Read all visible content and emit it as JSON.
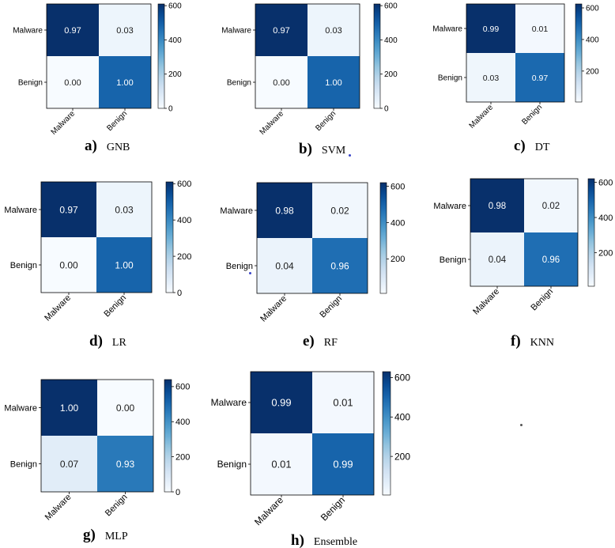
{
  "palette": [
    "#f7fbff",
    "#deebf7",
    "#c6dbef",
    "#9ecae1",
    "#6baed6",
    "#4292c6",
    "#2171b5",
    "#08519c",
    "#08306b"
  ],
  "stray_dot_colors": [
    "#3a45c8",
    "#3a45c8",
    "#555555"
  ],
  "chart_data": [
    {
      "type": "heatmap",
      "caption_letter": "a)",
      "caption_name": "GNB",
      "row_labels": [
        "Malware",
        "Benign"
      ],
      "col_labels": [
        "Malware",
        "Benign"
      ],
      "cells": [
        [
          "0.97",
          "0.03"
        ],
        [
          "0.00",
          "1.00"
        ]
      ],
      "shades": [
        [
          1.0,
          0.05
        ],
        [
          0.0,
          0.8
        ]
      ],
      "colorbar_ticks": [
        "0",
        "200",
        "400",
        "600"
      ],
      "colorbar_values": [
        0,
        200,
        400,
        600
      ],
      "colorbar_range": [
        0,
        610
      ]
    },
    {
      "type": "heatmap",
      "caption_letter": "b)",
      "caption_name": "SVM",
      "row_labels": [
        "Malware",
        "Benign"
      ],
      "col_labels": [
        "Malware",
        "Benign"
      ],
      "cells": [
        [
          "0.97",
          "0.03"
        ],
        [
          "0.00",
          "1.00"
        ]
      ],
      "shades": [
        [
          1.0,
          0.05
        ],
        [
          0.0,
          0.8
        ]
      ],
      "colorbar_ticks": [
        "0",
        "200",
        "400",
        "600"
      ],
      "colorbar_values": [
        0,
        200,
        400,
        600
      ],
      "colorbar_range": [
        0,
        610
      ]
    },
    {
      "type": "heatmap",
      "caption_letter": "c)",
      "caption_name": "DT",
      "row_labels": [
        "Malware",
        "Benign"
      ],
      "col_labels": [
        "Malware",
        "Benign"
      ],
      "cells": [
        [
          "0.99",
          "0.01"
        ],
        [
          "0.03",
          "0.97"
        ]
      ],
      "shades": [
        [
          1.0,
          0.02
        ],
        [
          0.04,
          0.78
        ]
      ],
      "colorbar_ticks": [
        "200",
        "400",
        "600"
      ],
      "colorbar_values": [
        200,
        400,
        600
      ],
      "colorbar_range": [
        4,
        625
      ]
    },
    {
      "type": "heatmap",
      "caption_letter": "d)",
      "caption_name": "LR",
      "row_labels": [
        "Malware",
        "Benign"
      ],
      "col_labels": [
        "Malware",
        "Benign"
      ],
      "cells": [
        [
          "0.97",
          "0.03"
        ],
        [
          "0.00",
          "1.00"
        ]
      ],
      "shades": [
        [
          1.0,
          0.05
        ],
        [
          0.0,
          0.8
        ]
      ],
      "colorbar_ticks": [
        "0",
        "200",
        "400",
        "600"
      ],
      "colorbar_values": [
        0,
        200,
        400,
        600
      ],
      "colorbar_range": [
        0,
        610
      ]
    },
    {
      "type": "heatmap",
      "caption_letter": "e)",
      "caption_name": "RF",
      "row_labels": [
        "Malware",
        "Benign"
      ],
      "col_labels": [
        "Malware",
        "Benign"
      ],
      "cells": [
        [
          "0.98",
          "0.02"
        ],
        [
          "0.04",
          "0.96"
        ]
      ],
      "shades": [
        [
          1.0,
          0.03
        ],
        [
          0.06,
          0.76
        ]
      ],
      "colorbar_ticks": [
        "200",
        "400",
        "600"
      ],
      "colorbar_values": [
        200,
        400,
        600
      ],
      "colorbar_range": [
        10,
        620
      ]
    },
    {
      "type": "heatmap",
      "caption_letter": "f)",
      "caption_name": "KNN",
      "row_labels": [
        "Malware",
        "Benign"
      ],
      "col_labels": [
        "Malware",
        "Benign"
      ],
      "cells": [
        [
          "0.98",
          "0.02"
        ],
        [
          "0.04",
          "0.96"
        ]
      ],
      "shades": [
        [
          1.0,
          0.03
        ],
        [
          0.06,
          0.76
        ]
      ],
      "colorbar_ticks": [
        "200",
        "400",
        "600"
      ],
      "colorbar_values": [
        200,
        400,
        600
      ],
      "colorbar_range": [
        10,
        620
      ]
    },
    {
      "type": "heatmap",
      "caption_letter": "g)",
      "caption_name": "MLP",
      "row_labels": [
        "Malware",
        "Benign"
      ],
      "col_labels": [
        "Malware",
        "Benign"
      ],
      "cells": [
        [
          "1.00",
          "0.00"
        ],
        [
          "0.07",
          "0.93"
        ]
      ],
      "shades": [
        [
          1.0,
          0.0
        ],
        [
          0.11,
          0.72
        ]
      ],
      "colorbar_ticks": [
        "0",
        "200",
        "400",
        "600"
      ],
      "colorbar_values": [
        0,
        200,
        400,
        600
      ],
      "colorbar_range": [
        0,
        640
      ]
    },
    {
      "type": "heatmap",
      "caption_letter": "h)",
      "caption_name": "Ensemble",
      "row_labels": [
        "Malware",
        "Benign"
      ],
      "col_labels": [
        "Malware",
        "Benign"
      ],
      "cells": [
        [
          "0.99",
          "0.01"
        ],
        [
          "0.01",
          "0.99"
        ]
      ],
      "shades": [
        [
          1.0,
          0.02
        ],
        [
          0.02,
          0.8
        ]
      ],
      "colorbar_ticks": [
        "200",
        "400",
        "600"
      ],
      "colorbar_values": [
        200,
        400,
        600
      ],
      "colorbar_range": [
        4,
        630
      ]
    }
  ]
}
